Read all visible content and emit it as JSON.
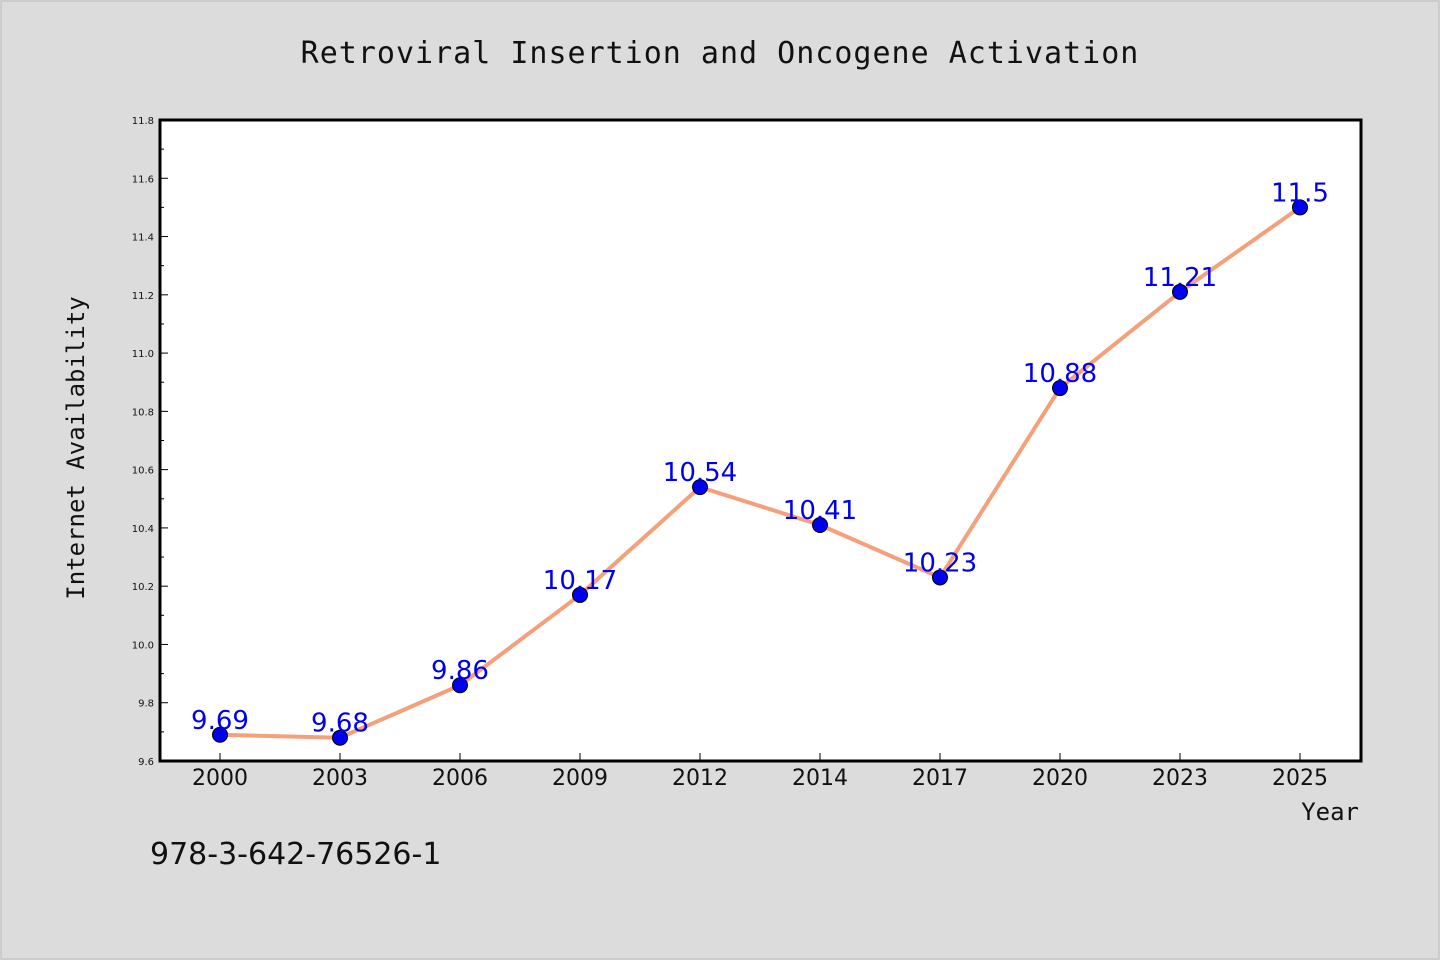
{
  "chart_data": {
    "type": "line",
    "title": "Retroviral Insertion and Oncogene Activation",
    "xlabel": "Year",
    "ylabel": "Internet Availability",
    "categories": [
      "2000",
      "2003",
      "2006",
      "2009",
      "2012",
      "2014",
      "2017",
      "2020",
      "2023",
      "2025"
    ],
    "series": [
      {
        "values": [
          9.69,
          9.68,
          9.86,
          10.17,
          10.54,
          10.41,
          10.23,
          10.88,
          11.21,
          11.5
        ],
        "labels": [
          "9.69",
          "9.68",
          "9.86",
          "10.17",
          "10.54",
          "10.41",
          "10.23",
          "10.88",
          "11.21",
          "11.5"
        ],
        "line_color": "#f4a07a",
        "marker_color": "#0000ee"
      }
    ],
    "ylim": [
      9.6,
      11.8
    ],
    "yticks": [
      "9.6",
      "9.8",
      "10.0",
      "10.2",
      "10.4",
      "10.6",
      "10.8",
      "11.0",
      "11.2",
      "11.4",
      "11.6",
      "11.8"
    ],
    "grid": false,
    "legend": "none"
  },
  "footer": {
    "identifier": "978-3-642-76526-1"
  },
  "colors": {
    "background": "#dcdcdc",
    "plot_background": "#ffffff",
    "axis": "#000000"
  }
}
